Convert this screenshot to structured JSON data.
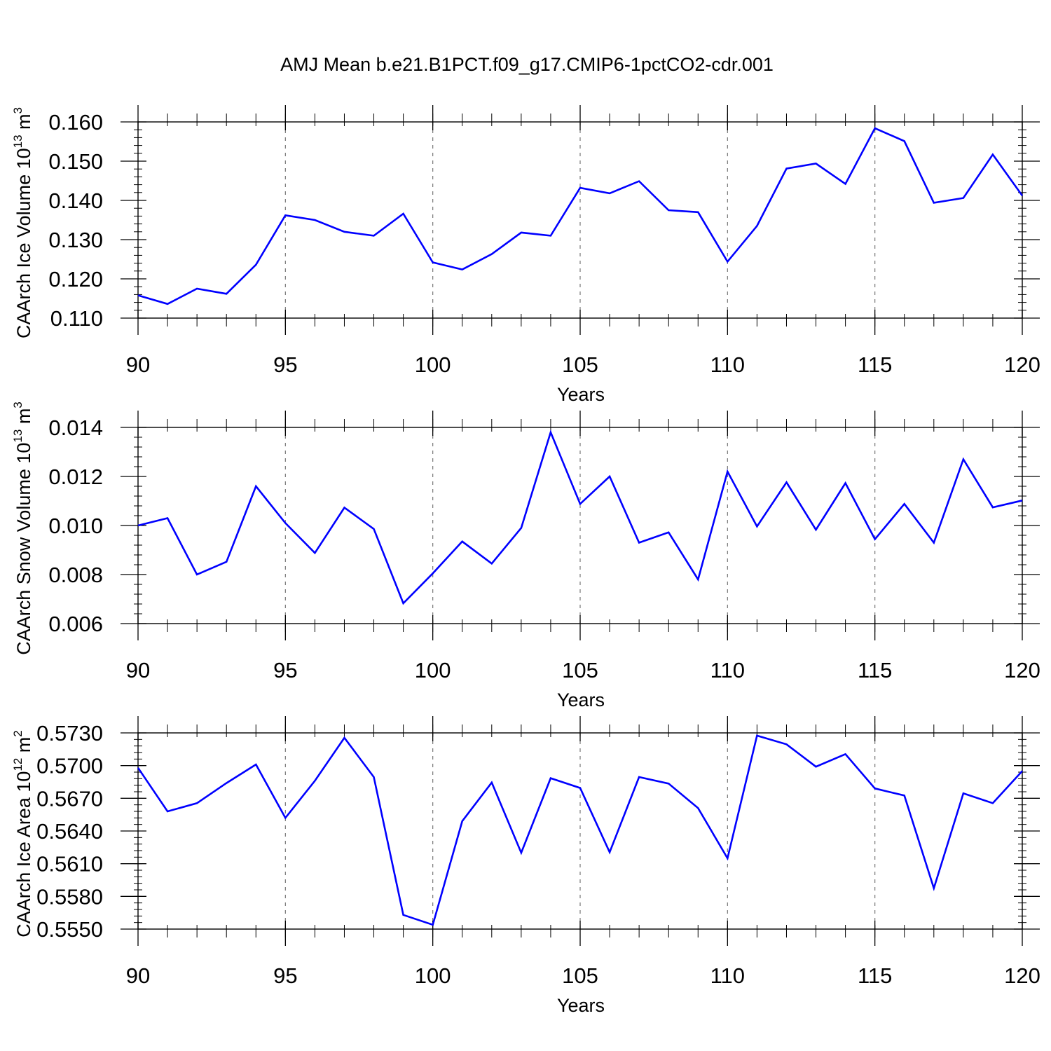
{
  "title": "AMJ Mean b.e21.B1PCT.f09_g17.CMIP6-1pctCO2-cdr.001",
  "colors": {
    "line": "#0000ff",
    "axis": "#000000",
    "grid": "#777777"
  },
  "chart_data": [
    {
      "type": "line",
      "ylabel": {
        "text": "CAArch Ice Volume 10",
        "exp": "13",
        "unit": " m",
        "unit_exp": "3"
      },
      "xlabel": "Years",
      "xlim": [
        90,
        120
      ],
      "ylim": [
        0.11,
        0.16
      ],
      "xticks": [
        "90",
        "95",
        "100",
        "105",
        "110",
        "115",
        "120"
      ],
      "yticks": [
        "0.110",
        "0.120",
        "0.130",
        "0.140",
        "0.150",
        "0.160"
      ],
      "grid": "vertical dashed at major x ticks",
      "x": [
        90,
        91,
        92,
        93,
        94,
        95,
        96,
        97,
        98,
        99,
        100,
        101,
        102,
        103,
        104,
        105,
        106,
        107,
        108,
        109,
        110,
        111,
        112,
        113,
        114,
        115,
        116,
        117,
        118,
        119,
        120
      ],
      "values": [
        0.1158,
        0.1136,
        0.1175,
        0.1162,
        0.1236,
        0.1362,
        0.135,
        0.132,
        0.131,
        0.1366,
        0.1242,
        0.1224,
        0.1263,
        0.1318,
        0.131,
        0.1432,
        0.1418,
        0.1449,
        0.1375,
        0.137,
        0.1244,
        0.1335,
        0.1481,
        0.1494,
        0.1442,
        0.1584,
        0.1551,
        0.1394,
        0.1406,
        0.1517,
        0.1412
      ]
    },
    {
      "type": "line",
      "ylabel": {
        "text": "CAArch Snow Volume 10",
        "exp": "13",
        "unit": " m",
        "unit_exp": "3"
      },
      "xlabel": "Years",
      "xlim": [
        90,
        120
      ],
      "ylim": [
        0.006,
        0.014
      ],
      "xticks": [
        "90",
        "95",
        "100",
        "105",
        "110",
        "115",
        "120"
      ],
      "yticks": [
        "0.006",
        "0.008",
        "0.010",
        "0.012",
        "0.014"
      ],
      "grid": "vertical dashed at major x ticks",
      "x": [
        90,
        91,
        92,
        93,
        94,
        95,
        96,
        97,
        98,
        99,
        100,
        101,
        102,
        103,
        104,
        105,
        106,
        107,
        108,
        109,
        110,
        111,
        112,
        113,
        114,
        115,
        116,
        117,
        118,
        119,
        120
      ],
      "values": [
        0.01,
        0.0103,
        0.008,
        0.00852,
        0.0116,
        0.0101,
        0.00888,
        0.01073,
        0.00986,
        0.00683,
        0.00805,
        0.00935,
        0.00845,
        0.0099,
        0.0138,
        0.01088,
        0.012,
        0.0093,
        0.00972,
        0.0078,
        0.0122,
        0.00996,
        0.01176,
        0.00983,
        0.01173,
        0.00944,
        0.01088,
        0.0093,
        0.0127,
        0.01074,
        0.01102
      ]
    },
    {
      "type": "line",
      "ylabel": {
        "text": "CAArch Ice Area 10",
        "exp": "12",
        "unit": " m",
        "unit_exp": "2"
      },
      "xlabel": "Years",
      "xlim": [
        90,
        120
      ],
      "ylim": [
        0.555,
        0.573
      ],
      "xticks": [
        "90",
        "95",
        "100",
        "105",
        "110",
        "115",
        "120"
      ],
      "yticks": [
        "0.5550",
        "0.5580",
        "0.5610",
        "0.5640",
        "0.5670",
        "0.5700",
        "0.5730"
      ],
      "grid": "vertical dashed at major x ticks",
      "x": [
        90,
        91,
        92,
        93,
        94,
        95,
        96,
        97,
        98,
        99,
        100,
        101,
        102,
        103,
        104,
        105,
        106,
        107,
        108,
        109,
        110,
        111,
        112,
        113,
        114,
        115,
        116,
        117,
        118,
        119,
        120
      ],
      "values": [
        0.5698,
        0.5658,
        0.56655,
        0.5684,
        0.5701,
        0.5652,
        0.5686,
        0.57255,
        0.56895,
        0.5563,
        0.5554,
        0.5649,
        0.56845,
        0.562,
        0.56885,
        0.56795,
        0.56205,
        0.56895,
        0.56835,
        0.5661,
        0.5615,
        0.57275,
        0.57195,
        0.5699,
        0.57105,
        0.5679,
        0.56725,
        0.55875,
        0.56745,
        0.56655,
        0.5695
      ]
    }
  ]
}
